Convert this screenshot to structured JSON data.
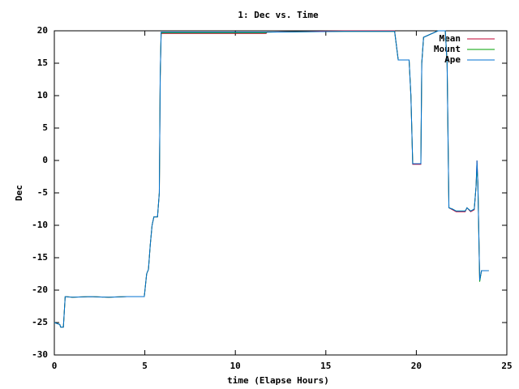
{
  "chart_data": {
    "type": "line",
    "title": "1: Dec vs. Time",
    "x_label": "time (Elapse Hours)",
    "y_label": "Dec",
    "x": [
      0,
      0.3,
      0.35,
      0.5,
      0.6,
      1,
      2,
      3,
      4,
      4.97,
      5.1,
      5.2,
      5.3,
      5.4,
      5.5,
      5.7,
      5.8,
      5.85,
      5.9,
      8,
      11.7,
      11.75,
      16,
      18.8,
      19.0,
      19.6,
      19.7,
      19.8,
      20.25,
      20.3,
      20.4,
      21.2,
      21.6,
      21.7,
      21.8,
      22.0,
      22.2,
      22.7,
      22.8,
      23.0,
      23.2,
      23.3,
      23.35,
      23.4,
      23.5,
      23.6,
      24
    ],
    "series": [
      {
        "name": "Mean",
        "color": "#c00030",
        "values": [
          -25,
          -25.3,
          -25.7,
          -25.7,
          -21,
          -21.1,
          -21,
          -21.1,
          -21,
          -21,
          -17.5,
          -16.8,
          -13,
          -10,
          -8.7,
          -8.7,
          -5,
          13,
          19.6,
          19.6,
          19.6,
          19.8,
          20,
          20,
          15.5,
          15.5,
          10,
          -0.6,
          -0.6,
          15,
          19,
          20,
          20,
          15,
          -7.3,
          -7.6,
          -7.9,
          -7.9,
          -7.3,
          -7.9,
          -7.6,
          -4,
          0,
          -3.5,
          -18.5,
          -17,
          -17
        ]
      },
      {
        "name": "Mount",
        "color": "#00a000",
        "values": [
          -25,
          -25.3,
          -25.7,
          -25.7,
          -21,
          -21.1,
          -21,
          -21.1,
          -21,
          -21,
          -17.5,
          -16.8,
          -13,
          -10,
          -8.7,
          -8.7,
          -5,
          13,
          19.7,
          19.7,
          19.7,
          19.8,
          19.9,
          19.9,
          15.5,
          15.5,
          10,
          -0.5,
          -0.5,
          15,
          19,
          20,
          20,
          15,
          -7.3,
          -7.5,
          -7.8,
          -7.8,
          -7.3,
          -7.8,
          -7.5,
          -4,
          -1,
          -3.5,
          -18.7,
          -17,
          -17
        ]
      },
      {
        "name": "Ape",
        "color": "#0070d0",
        "values": [
          -25,
          -25.3,
          -25.7,
          -25.7,
          -21,
          -21.1,
          -21,
          -21.1,
          -21,
          -21,
          -17.5,
          -16.8,
          -13,
          -10,
          -8.7,
          -8.7,
          -5,
          13,
          19.8,
          19.8,
          19.8,
          19.8,
          19.9,
          19.9,
          15.5,
          15.5,
          10,
          -0.5,
          -0.5,
          15,
          19,
          20,
          20,
          15,
          -7.3,
          -7.5,
          -7.8,
          -7.8,
          -7.3,
          -7.8,
          -7.5,
          -4,
          0,
          -3.5,
          -18.5,
          -17,
          -17
        ]
      }
    ],
    "xlim": [
      0,
      25
    ],
    "xticks": [
      0,
      5,
      10,
      15,
      20,
      25
    ],
    "ylim": [
      -30,
      20
    ],
    "yticks": [
      -30,
      -25,
      -20,
      -15,
      -10,
      -5,
      0,
      5,
      10,
      15,
      20
    ],
    "legend": "top-right"
  }
}
